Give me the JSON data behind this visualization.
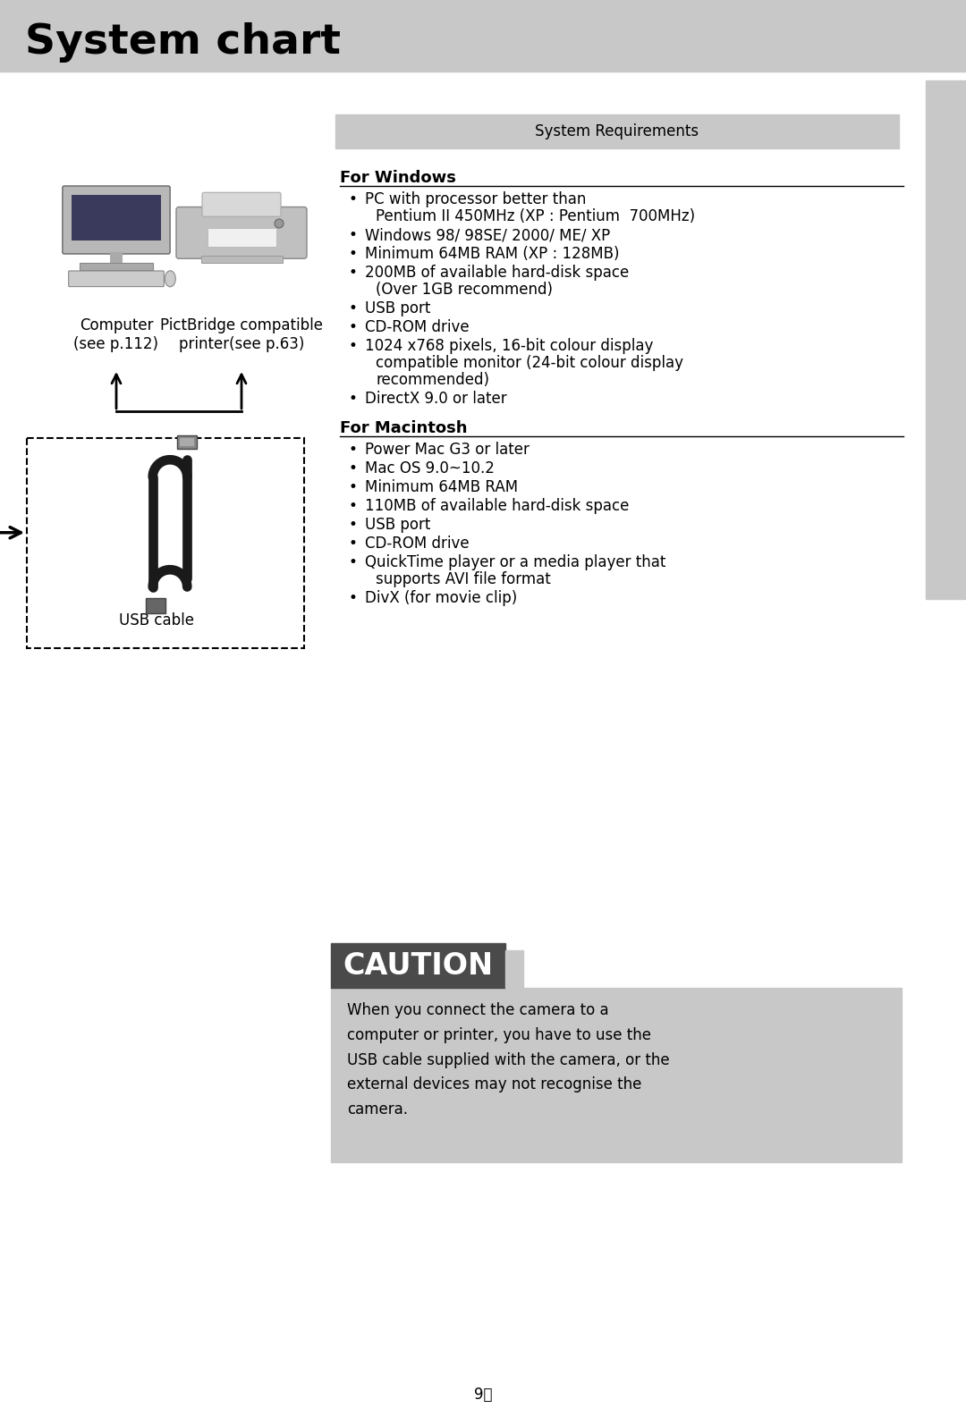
{
  "title": "System chart",
  "title_bg": "#c8c8c8",
  "page_bg": "#ffffff",
  "sidebar_color": "#c8c8c8",
  "sys_req_box_color": "#c8c8c8",
  "sys_req_title": "System Requirements",
  "win_header": "For Windows",
  "win_items": [
    [
      "PC with processor better than",
      "Pentium II 450MHz (XP : Pentium  700MHz)"
    ],
    [
      "Windows 98/ 98SE/ 2000/ ME/ XP"
    ],
    [
      "Minimum 64MB RAM (XP : 128MB)"
    ],
    [
      "200MB of available hard-disk space",
      "(Over 1GB recommend)"
    ],
    [
      "USB port"
    ],
    [
      "CD-ROM drive"
    ],
    [
      "1024 x768 pixels, 16-bit colour display",
      "compatible monitor (24-bit colour display",
      "recommended)"
    ],
    [
      "DirectX 9.0 or later"
    ]
  ],
  "mac_header": "For Macintosh",
  "mac_items": [
    [
      "Power Mac G3 or later"
    ],
    [
      "Mac OS 9.0~10.2"
    ],
    [
      "Minimum 64MB RAM"
    ],
    [
      "110MB of available hard-disk space"
    ],
    [
      "USB port"
    ],
    [
      "CD-ROM drive"
    ],
    [
      "QuickTime player or a media player that",
      "supports AVI file format"
    ],
    [
      "DivX (for movie clip)"
    ]
  ],
  "caution_label": "CAUTION",
  "caution_label_bg": "#4a4a4a",
  "caution_box_bg": "#c8c8c8",
  "caution_text": "When you connect the camera to a\ncomputer or printer, you have to use the\nUSB cable supplied with the camera, or the\nexternal devices may not recognise the\ncamera.",
  "computer_label": "Computer\n(see p.112)",
  "printer_label": "PictBridge compatible\nprinter(see p.63)",
  "usb_label": "USB cable",
  "page_num": " 9〉"
}
